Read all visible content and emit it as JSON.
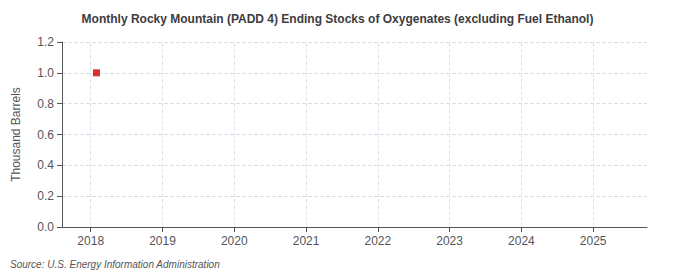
{
  "chart_data": {
    "type": "scatter",
    "title": "Monthly Rocky Mountain (PADD 4) Ending Stocks of Oxygenates (excluding Fuel Ethanol)",
    "ylabel": "Thousand Barrels",
    "source": "Source: U.S. Energy Information Administration",
    "x": [
      2018.08
    ],
    "values": [
      1.0
    ],
    "color": "#cc0000",
    "marker": "square",
    "xlim": [
      2017.6,
      2025.75
    ],
    "xticks": [
      2018,
      2019,
      2020,
      2021,
      2022,
      2023,
      2024,
      2025
    ],
    "ylim": [
      0.0,
      1.2
    ],
    "yticks": [
      {
        "value": 0.0,
        "label": "0.0"
      },
      0.2,
      0.4,
      0.6,
      0.8,
      {
        "value": 1.0,
        "label": "1.0"
      },
      1.2
    ],
    "grid": true
  }
}
